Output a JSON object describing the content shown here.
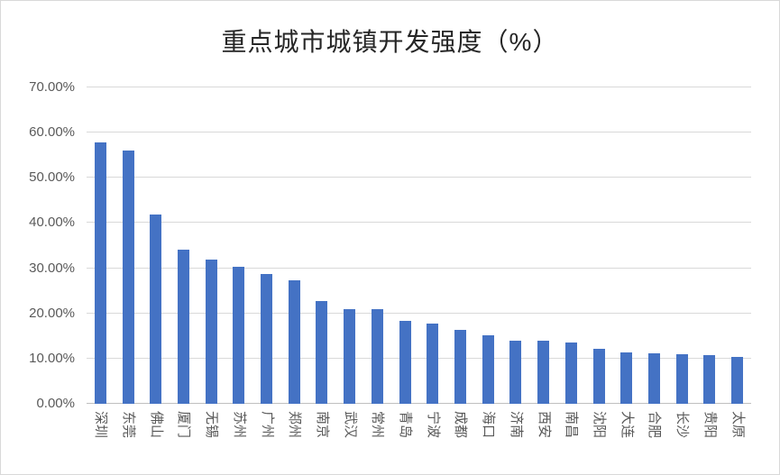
{
  "chart_data": {
    "type": "bar",
    "title": "重点城市城镇开发强度（%）",
    "categories": [
      "深圳",
      "东莞",
      "佛山",
      "厦门",
      "无锡",
      "苏州",
      "广州",
      "郑州",
      "南京",
      "武汉",
      "常州",
      "青岛",
      "宁波",
      "成都",
      "海口",
      "济南",
      "西安",
      "南昌",
      "沈阳",
      "大连",
      "合肥",
      "长沙",
      "贵阳",
      "太原"
    ],
    "values": [
      57.9,
      56.1,
      41.8,
      34.1,
      32.0,
      30.4,
      28.7,
      27.3,
      22.7,
      21.0,
      20.9,
      18.4,
      17.8,
      16.4,
      15.2,
      14.0,
      14.0,
      13.5,
      12.1,
      11.3,
      11.2,
      10.9,
      10.8,
      10.3
    ],
    "xlabel": "",
    "ylabel": "",
    "ylim": [
      0,
      70
    ],
    "y_ticks": [
      "0.00%",
      "10.00%",
      "20.00%",
      "30.00%",
      "40.00%",
      "50.00%",
      "60.00%",
      "70.00%"
    ],
    "grid": true,
    "legend": "none",
    "bar_color": "#4472C4"
  },
  "colors": {
    "bar": "#4472C4",
    "gridline": "#D9D9D9",
    "axis_line": "#BFBFBF",
    "tick_text": "#595959",
    "title_text": "#262626",
    "frame": "#D9D9D9"
  }
}
